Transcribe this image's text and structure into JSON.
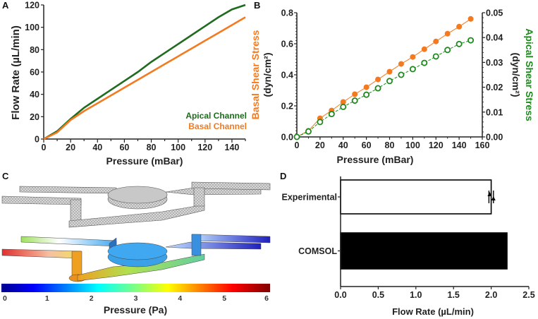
{
  "chart_data": [
    {
      "panel": "A",
      "type": "line",
      "xlabel": "Pressure (mBar)",
      "ylabel": "Flow  Rate (µL/min)",
      "xlim": [
        0,
        150
      ],
      "ylim": [
        0,
        120
      ],
      "xticks": [
        0,
        20,
        40,
        60,
        80,
        100,
        120,
        140
      ],
      "yticks": [
        0,
        20,
        40,
        60,
        80,
        100,
        120
      ],
      "legend_position": "bottom-right",
      "x": [
        0,
        10,
        20,
        30,
        40,
        50,
        60,
        70,
        80,
        90,
        100,
        110,
        120,
        130,
        140,
        150
      ],
      "series": [
        {
          "name": "Apical Channel",
          "color": "#1f6b1f",
          "values": [
            0,
            7,
            18,
            28,
            36,
            44,
            52,
            60,
            69,
            77,
            85,
            93,
            101,
            109,
            116,
            120
          ]
        },
        {
          "name": "Basal Channel",
          "color": "#f47a20",
          "values": [
            0,
            6,
            17,
            25,
            32,
            39,
            46,
            53,
            60,
            67,
            74,
            81,
            88,
            95,
            102,
            109
          ]
        }
      ]
    },
    {
      "panel": "B",
      "type": "line",
      "xlabel": "Pressure (mBar)",
      "ylabel_left": "Basal Shear Stress",
      "ylabel_left_unit": "(dyn/cm²)",
      "ylabel_right": "Apical Shear Stress",
      "ylabel_right_unit": "(dyn/cm²)",
      "xlim": [
        0,
        160
      ],
      "ylim_left": [
        0,
        0.8
      ],
      "ylim_right": [
        0,
        0.05
      ],
      "xticks": [
        "0",
        "20",
        "40",
        "60",
        "80",
        "100",
        "120",
        "140",
        "160"
      ],
      "yticks_left": [
        "0.0",
        "0.2",
        "0.4",
        "0.6",
        "0.8"
      ],
      "yticks_right": [
        "0.00",
        "0.01",
        "0.02",
        "0.03",
        "0.04",
        "0.05"
      ],
      "x": [
        0,
        10,
        20,
        30,
        40,
        50,
        60,
        70,
        80,
        90,
        100,
        110,
        120,
        130,
        140,
        150
      ],
      "series": [
        {
          "name": "Basal Shear Stress",
          "axis": "left",
          "marker": "filled-circle",
          "color": "#f47a20",
          "values": [
            0,
            0.04,
            0.12,
            0.17,
            0.225,
            0.275,
            0.32,
            0.37,
            0.42,
            0.47,
            0.515,
            0.565,
            0.615,
            0.665,
            0.71,
            0.76
          ]
        },
        {
          "name": "Apical Shear Stress",
          "axis": "right",
          "marker": "open-circle",
          "color": "#1e8a1e",
          "values": [
            0,
            0.0022,
            0.006,
            0.0092,
            0.0121,
            0.0146,
            0.017,
            0.0196,
            0.0225,
            0.025,
            0.0273,
            0.0298,
            0.0324,
            0.035,
            0.0374,
            0.0389
          ]
        }
      ]
    },
    {
      "panel": "C",
      "type": "heatmap",
      "colorbar_label": "Pressure (Pa)",
      "colorbar_range": [
        0,
        6
      ],
      "colorbar_ticks": [
        "0",
        "1",
        "2",
        "3",
        "4",
        "5",
        "6"
      ]
    },
    {
      "panel": "D",
      "type": "bar",
      "orientation": "horizontal",
      "xlabel": "Flow Rate (µL/min)",
      "xlim": [
        0,
        2.5
      ],
      "xticks": [
        "0.0",
        "0.5",
        "1.0",
        "1.5",
        "2.0",
        "2.5"
      ],
      "categories": [
        "Experimental",
        "COMSOL"
      ],
      "values": [
        2.0,
        2.21
      ],
      "error": [
        0.03,
        0
      ],
      "fills": [
        "#ffffff",
        "#000000"
      ]
    }
  ],
  "panel_labels": [
    "A",
    "B",
    "C",
    "D"
  ]
}
